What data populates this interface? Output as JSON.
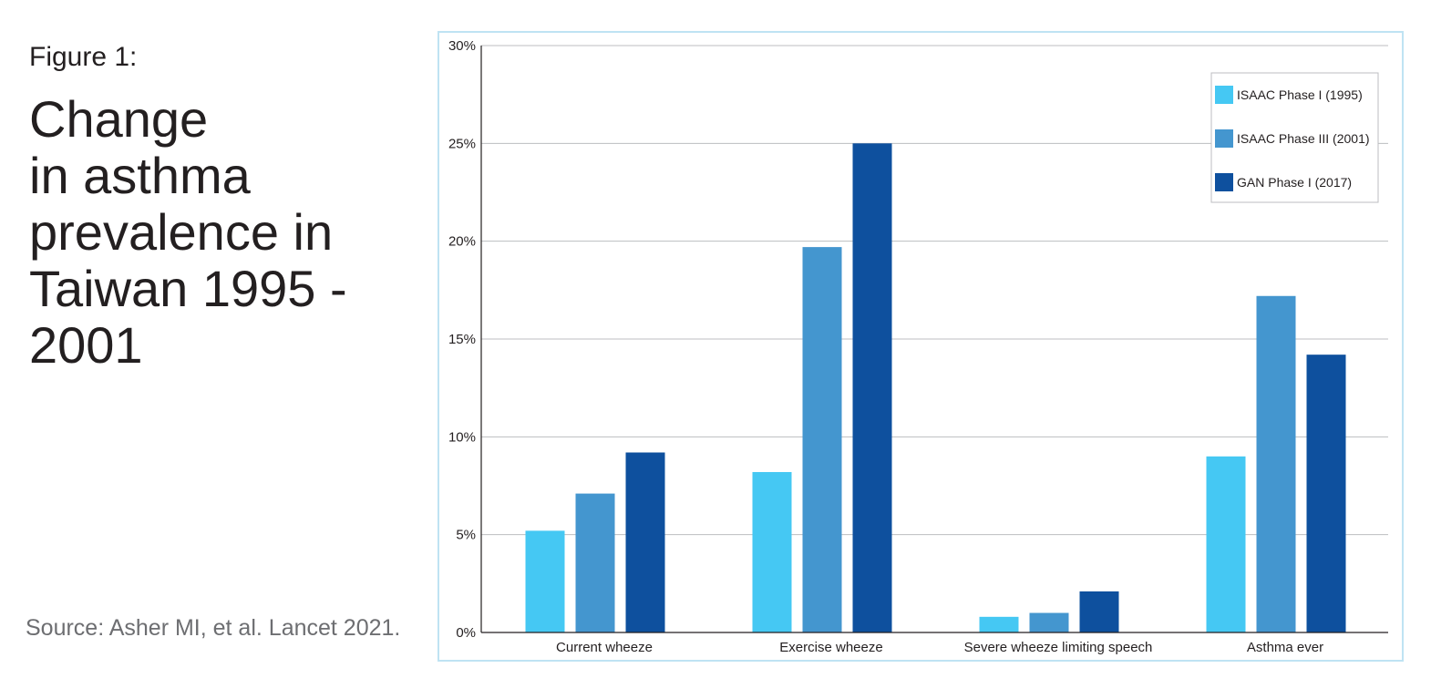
{
  "figure": {
    "label": "Figure 1:",
    "title": "Change\nin asthma\nprevalence in\nTaiwan 1995 -\n2001",
    "source": "Source: Asher MI, et al. Lancet 2021."
  },
  "chart_data": {
    "type": "bar",
    "categories": [
      "Current wheeze",
      "Exercise wheeze",
      "Severe wheeze limiting speech",
      "Asthma ever"
    ],
    "series": [
      {
        "name": "ISAAC Phase I (1995)",
        "color": "#45c8f3",
        "values": [
          5.2,
          8.2,
          0.8,
          9.0
        ]
      },
      {
        "name": "ISAAC Phase III (2001)",
        "color": "#4496cf",
        "values": [
          7.1,
          19.7,
          1.0,
          17.2
        ]
      },
      {
        "name": "GAN Phase I (2017)",
        "color": "#0e509e",
        "values": [
          9.2,
          25.0,
          2.1,
          14.2
        ]
      }
    ],
    "yticks": [
      "0%",
      "5%",
      "10%",
      "15%",
      "20%",
      "25%",
      "30%"
    ],
    "ylim": [
      0,
      30
    ],
    "grid": true,
    "legend_position": "top-right"
  }
}
